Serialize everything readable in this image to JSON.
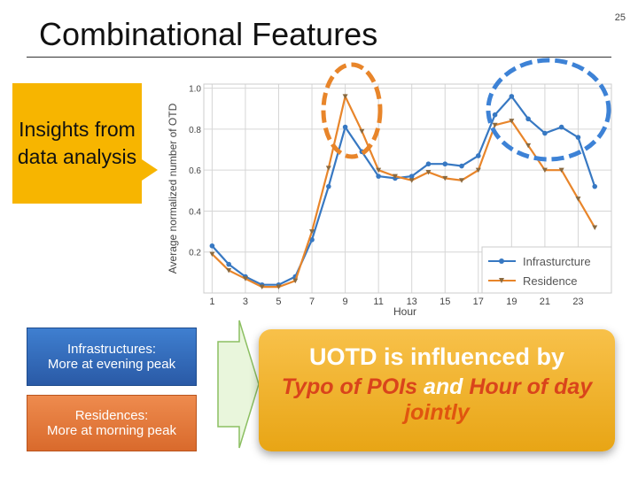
{
  "slide": {
    "title": "Combinational Features",
    "page_number": "25",
    "callout": "Insights from data analysis",
    "box_infra": {
      "line1": "Infrastructures:",
      "line2": "More at evening peak"
    },
    "box_res": {
      "line1": "Residences:",
      "line2": "More at morning peak"
    },
    "conclusion": {
      "line1": "UOTD is influenced by",
      "typo": "Typo of POIs",
      "and": " and ",
      "hour": "Hour of day",
      "line3": "jointly"
    },
    "colors": {
      "callout": "#f7b500",
      "infra": "#3778c2",
      "res": "#e8852a",
      "circle_orange": "#e8852a",
      "circle_blue": "#3d82d6"
    }
  },
  "chart_data": {
    "type": "line",
    "xlabel": "Hour",
    "ylabel": "Average normalized number of OTD",
    "x": [
      1,
      2,
      3,
      4,
      5,
      6,
      7,
      8,
      9,
      10,
      11,
      12,
      13,
      14,
      15,
      16,
      17,
      18,
      19,
      20,
      21,
      22,
      23,
      24
    ],
    "xticks": [
      "1",
      "3",
      "5",
      "7",
      "9",
      "11",
      "13",
      "15",
      "17",
      "19",
      "21",
      "23"
    ],
    "yticks": [
      "0.2",
      "0.4",
      "0.6",
      "0.8",
      "1.0"
    ],
    "xlim": [
      0.5,
      25
    ],
    "ylim": [
      0,
      1.02
    ],
    "legend_position": "bottom-right",
    "series": [
      {
        "name": "Infrasturcture",
        "color": "#3778c2",
        "marker": "circle",
        "values": [
          0.23,
          0.14,
          0.08,
          0.04,
          0.04,
          0.08,
          0.26,
          0.52,
          0.81,
          0.69,
          0.57,
          0.56,
          0.57,
          0.63,
          0.63,
          0.62,
          0.67,
          0.87,
          0.96,
          0.85,
          0.78,
          0.81,
          0.76,
          0.52
        ]
      },
      {
        "name": "Residence",
        "color": "#e8852a",
        "marker": "triangle-down",
        "values": [
          0.19,
          0.11,
          0.07,
          0.03,
          0.03,
          0.06,
          0.3,
          0.61,
          0.96,
          0.79,
          0.6,
          0.57,
          0.55,
          0.59,
          0.56,
          0.55,
          0.6,
          0.82,
          0.84,
          0.72,
          0.6,
          0.6,
          0.46,
          0.32
        ]
      }
    ]
  }
}
